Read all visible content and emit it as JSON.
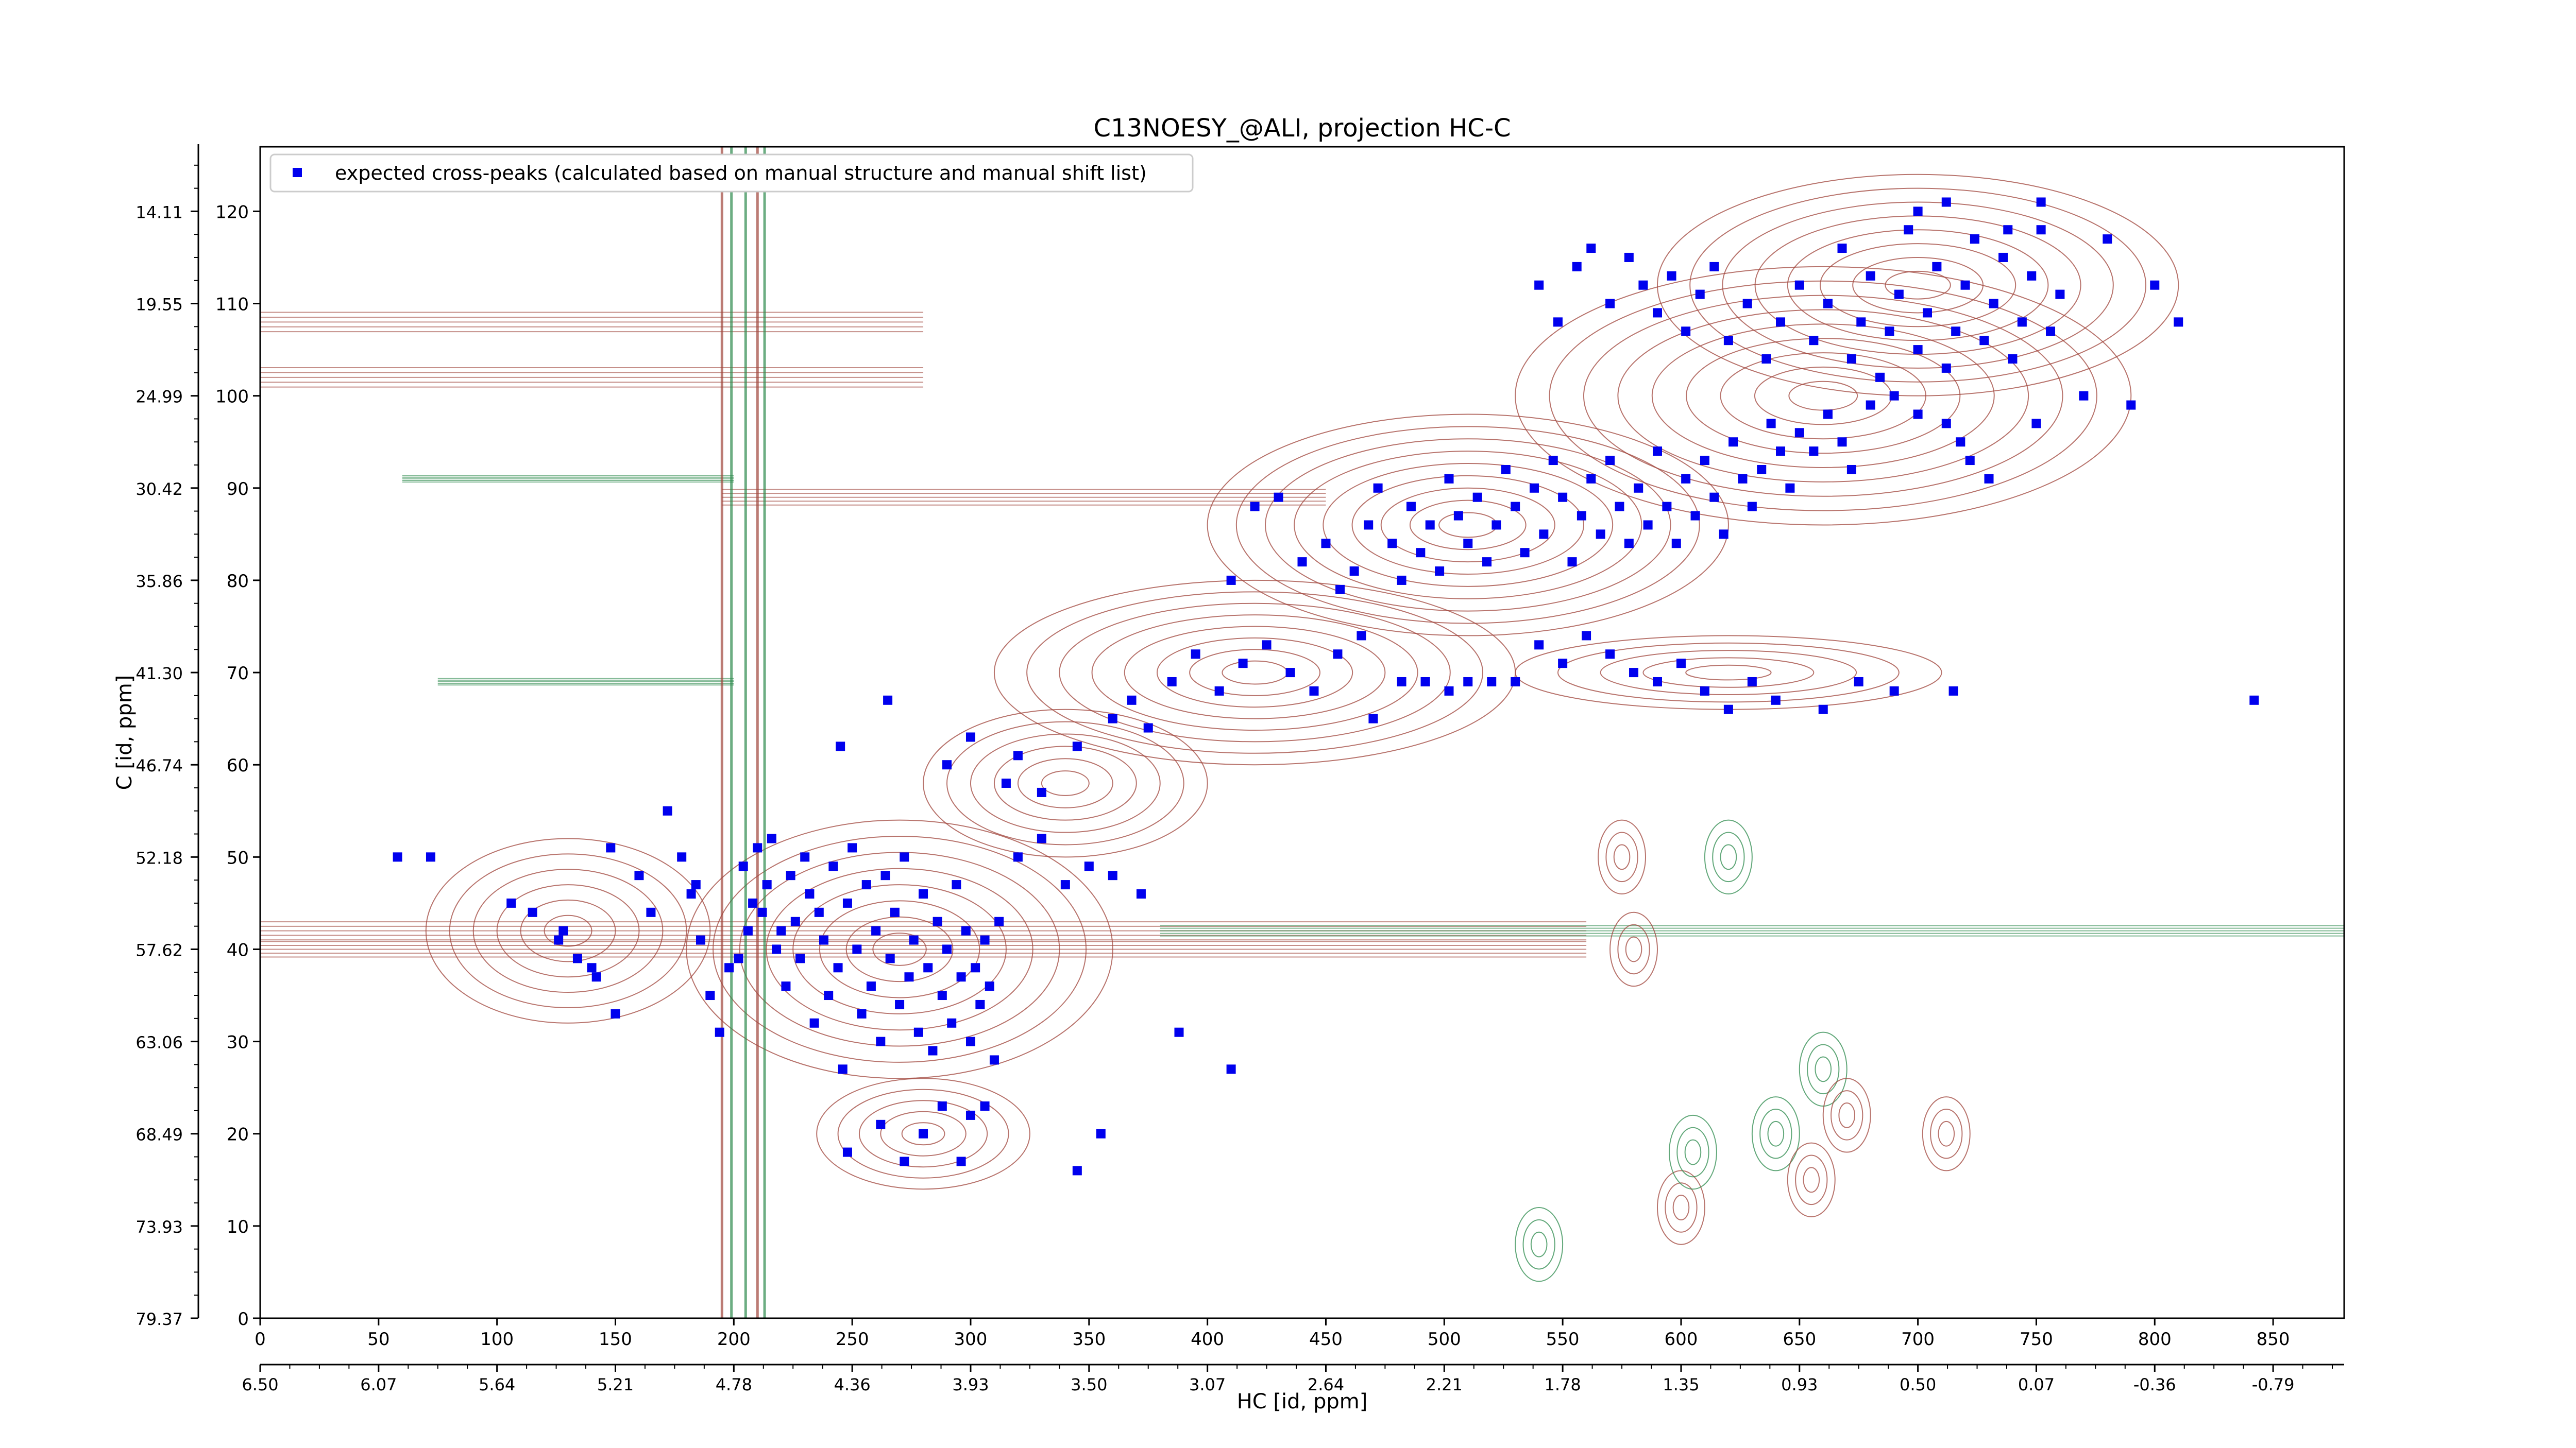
{
  "chart_data": {
    "type": "scatter",
    "title": "C13NOESY_@ALI, projection HC-C",
    "xlabel": "HC [id, ppm]",
    "ylabel": "C [id, ppm]",
    "xlim": [
      0,
      880
    ],
    "ylim": [
      0,
      127
    ],
    "x_ticks_index": [
      0,
      50,
      100,
      150,
      200,
      250,
      300,
      350,
      400,
      450,
      500,
      550,
      600,
      650,
      700,
      750,
      800,
      850
    ],
    "x_ticks_ppm": [
      "6.50",
      "6.07",
      "5.64",
      "5.21",
      "4.78",
      "4.36",
      "3.93",
      "3.50",
      "3.07",
      "2.64",
      "2.21",
      "1.78",
      "1.35",
      "0.93",
      "0.50",
      "0.07",
      "-0.36",
      "-0.79"
    ],
    "y_ticks_index": [
      0,
      10,
      20,
      30,
      40,
      50,
      60,
      70,
      80,
      90,
      100,
      110,
      120
    ],
    "y_ticks_ppm": [
      "79.37",
      "73.93",
      "68.49",
      "63.06",
      "57.62",
      "52.18",
      "46.74",
      "41.30",
      "35.86",
      "30.42",
      "24.99",
      "19.55",
      "14.11"
    ],
    "grid": false,
    "legend_position": "top-left",
    "colors": {
      "positive_contour": "#a0463c",
      "negative_contour": "#2e8b4e",
      "marker": "#0000ee"
    },
    "series": [
      {
        "name": "expected cross-peaks (calculated based on manual structure and manual shift list)",
        "marker": "square",
        "color": "#0000ee",
        "points": [
          [
            58,
            50
          ],
          [
            72,
            50
          ],
          [
            106,
            45
          ],
          [
            115,
            44
          ],
          [
            126,
            41
          ],
          [
            128,
            42
          ],
          [
            134,
            39
          ],
          [
            140,
            38
          ],
          [
            142,
            37
          ],
          [
            148,
            51
          ],
          [
            150,
            33
          ],
          [
            160,
            48
          ],
          [
            165,
            44
          ],
          [
            172,
            55
          ],
          [
            178,
            50
          ],
          [
            182,
            46
          ],
          [
            184,
            47
          ],
          [
            186,
            41
          ],
          [
            190,
            35
          ],
          [
            194,
            31
          ],
          [
            198,
            38
          ],
          [
            202,
            39
          ],
          [
            204,
            49
          ],
          [
            206,
            42
          ],
          [
            208,
            45
          ],
          [
            210,
            51
          ],
          [
            212,
            44
          ],
          [
            214,
            47
          ],
          [
            216,
            52
          ],
          [
            218,
            40
          ],
          [
            220,
            42
          ],
          [
            222,
            36
          ],
          [
            224,
            48
          ],
          [
            226,
            43
          ],
          [
            228,
            39
          ],
          [
            230,
            50
          ],
          [
            232,
            46
          ],
          [
            234,
            32
          ],
          [
            236,
            44
          ],
          [
            238,
            41
          ],
          [
            240,
            35
          ],
          [
            242,
            49
          ],
          [
            244,
            38
          ],
          [
            246,
            27
          ],
          [
            248,
            45
          ],
          [
            250,
            51
          ],
          [
            252,
            40
          ],
          [
            254,
            33
          ],
          [
            256,
            47
          ],
          [
            258,
            36
          ],
          [
            260,
            42
          ],
          [
            262,
            30
          ],
          [
            264,
            48
          ],
          [
            266,
            39
          ],
          [
            268,
            44
          ],
          [
            270,
            34
          ],
          [
            272,
            50
          ],
          [
            274,
            37
          ],
          [
            276,
            41
          ],
          [
            278,
            31
          ],
          [
            280,
            46
          ],
          [
            282,
            38
          ],
          [
            284,
            29
          ],
          [
            286,
            43
          ],
          [
            288,
            35
          ],
          [
            290,
            40
          ],
          [
            292,
            32
          ],
          [
            294,
            47
          ],
          [
            296,
            37
          ],
          [
            298,
            42
          ],
          [
            300,
            30
          ],
          [
            302,
            38
          ],
          [
            304,
            34
          ],
          [
            306,
            41
          ],
          [
            308,
            36
          ],
          [
            310,
            28
          ],
          [
            312,
            43
          ],
          [
            320,
            50
          ],
          [
            330,
            52
          ],
          [
            340,
            47
          ],
          [
            350,
            49
          ],
          [
            360,
            48
          ],
          [
            372,
            46
          ],
          [
            388,
            31
          ],
          [
            410,
            27
          ],
          [
            248,
            18
          ],
          [
            262,
            21
          ],
          [
            272,
            17
          ],
          [
            280,
            20
          ],
          [
            288,
            23
          ],
          [
            296,
            17
          ],
          [
            300,
            22
          ],
          [
            306,
            23
          ],
          [
            345,
            16
          ],
          [
            355,
            20
          ],
          [
            245,
            62
          ],
          [
            265,
            67
          ],
          [
            290,
            60
          ],
          [
            300,
            63
          ],
          [
            315,
            58
          ],
          [
            320,
            61
          ],
          [
            330,
            57
          ],
          [
            345,
            62
          ],
          [
            360,
            65
          ],
          [
            368,
            67
          ],
          [
            375,
            64
          ],
          [
            385,
            69
          ],
          [
            395,
            72
          ],
          [
            405,
            68
          ],
          [
            415,
            71
          ],
          [
            425,
            73
          ],
          [
            435,
            70
          ],
          [
            445,
            68
          ],
          [
            455,
            72
          ],
          [
            465,
            74
          ],
          [
            470,
            65
          ],
          [
            482,
            69
          ],
          [
            492,
            69
          ],
          [
            502,
            68
          ],
          [
            510,
            69
          ],
          [
            520,
            69
          ],
          [
            530,
            69
          ],
          [
            540,
            73
          ],
          [
            550,
            71
          ],
          [
            560,
            74
          ],
          [
            570,
            72
          ],
          [
            580,
            70
          ],
          [
            590,
            69
          ],
          [
            600,
            71
          ],
          [
            610,
            68
          ],
          [
            620,
            66
          ],
          [
            630,
            69
          ],
          [
            640,
            67
          ],
          [
            660,
            66
          ],
          [
            675,
            69
          ],
          [
            690,
            68
          ],
          [
            715,
            68
          ],
          [
            842,
            67
          ],
          [
            410,
            80
          ],
          [
            420,
            88
          ],
          [
            430,
            89
          ],
          [
            440,
            82
          ],
          [
            450,
            84
          ],
          [
            456,
            79
          ],
          [
            462,
            81
          ],
          [
            468,
            86
          ],
          [
            472,
            90
          ],
          [
            478,
            84
          ],
          [
            482,
            80
          ],
          [
            486,
            88
          ],
          [
            490,
            83
          ],
          [
            494,
            86
          ],
          [
            498,
            81
          ],
          [
            502,
            91
          ],
          [
            506,
            87
          ],
          [
            510,
            84
          ],
          [
            514,
            89
          ],
          [
            518,
            82
          ],
          [
            522,
            86
          ],
          [
            526,
            92
          ],
          [
            530,
            88
          ],
          [
            534,
            83
          ],
          [
            538,
            90
          ],
          [
            542,
            85
          ],
          [
            546,
            93
          ],
          [
            550,
            89
          ],
          [
            554,
            82
          ],
          [
            558,
            87
          ],
          [
            562,
            91
          ],
          [
            566,
            85
          ],
          [
            570,
            93
          ],
          [
            574,
            88
          ],
          [
            578,
            84
          ],
          [
            582,
            90
          ],
          [
            586,
            86
          ],
          [
            590,
            94
          ],
          [
            594,
            88
          ],
          [
            598,
            84
          ],
          [
            602,
            91
          ],
          [
            606,
            87
          ],
          [
            610,
            93
          ],
          [
            614,
            89
          ],
          [
            618,
            85
          ],
          [
            622,
            95
          ],
          [
            626,
            91
          ],
          [
            630,
            88
          ],
          [
            634,
            92
          ],
          [
            638,
            97
          ],
          [
            642,
            94
          ],
          [
            646,
            90
          ],
          [
            650,
            96
          ],
          [
            656,
            94
          ],
          [
            662,
            98
          ],
          [
            668,
            95
          ],
          [
            672,
            92
          ],
          [
            680,
            99
          ],
          [
            690,
            100
          ],
          [
            700,
            98
          ],
          [
            712,
            97
          ],
          [
            718,
            95
          ],
          [
            722,
            93
          ],
          [
            730,
            91
          ],
          [
            750,
            97
          ],
          [
            770,
            100
          ],
          [
            790,
            99
          ],
          [
            540,
            112
          ],
          [
            548,
            108
          ],
          [
            556,
            114
          ],
          [
            562,
            116
          ],
          [
            570,
            110
          ],
          [
            578,
            115
          ],
          [
            584,
            112
          ],
          [
            590,
            109
          ],
          [
            596,
            113
          ],
          [
            602,
            107
          ],
          [
            608,
            111
          ],
          [
            614,
            114
          ],
          [
            620,
            106
          ],
          [
            628,
            110
          ],
          [
            636,
            104
          ],
          [
            642,
            108
          ],
          [
            650,
            112
          ],
          [
            656,
            106
          ],
          [
            662,
            110
          ],
          [
            668,
            116
          ],
          [
            672,
            104
          ],
          [
            676,
            108
          ],
          [
            680,
            113
          ],
          [
            684,
            102
          ],
          [
            688,
            107
          ],
          [
            692,
            111
          ],
          [
            696,
            118
          ],
          [
            700,
            105
          ],
          [
            704,
            109
          ],
          [
            708,
            114
          ],
          [
            712,
            103
          ],
          [
            716,
            107
          ],
          [
            720,
            112
          ],
          [
            724,
            117
          ],
          [
            728,
            106
          ],
          [
            732,
            110
          ],
          [
            736,
            115
          ],
          [
            740,
            104
          ],
          [
            744,
            108
          ],
          [
            748,
            113
          ],
          [
            752,
            121
          ],
          [
            756,
            107
          ],
          [
            760,
            111
          ],
          [
            700,
            120
          ],
          [
            712,
            121
          ],
          [
            724,
            117
          ],
          [
            738,
            118
          ],
          [
            752,
            118
          ],
          [
            780,
            117
          ],
          [
            800,
            112
          ],
          [
            810,
            108
          ]
        ]
      }
    ]
  }
}
